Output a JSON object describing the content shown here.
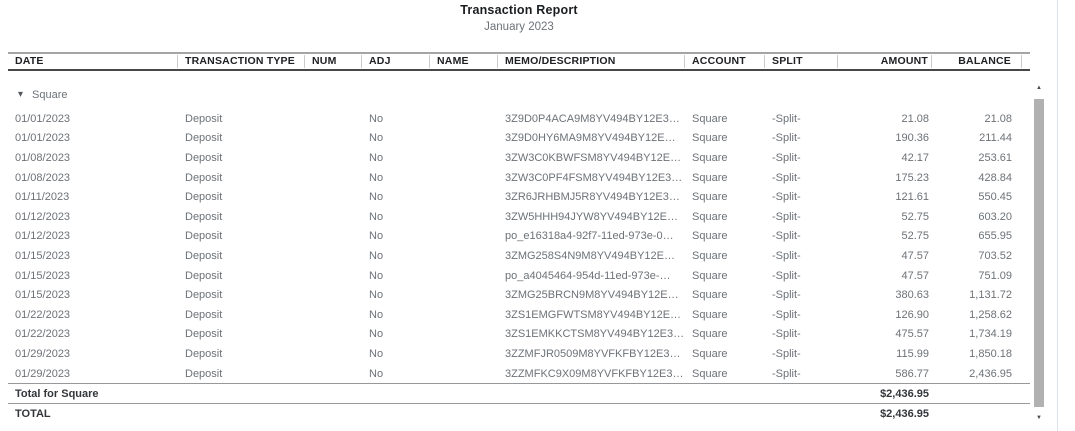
{
  "report": {
    "title": "Transaction Report",
    "subtitle": "January 2023"
  },
  "columns": [
    {
      "key": "date",
      "label": "DATE"
    },
    {
      "key": "type",
      "label": "TRANSACTION TYPE"
    },
    {
      "key": "num",
      "label": "NUM"
    },
    {
      "key": "adj",
      "label": "ADJ"
    },
    {
      "key": "name",
      "label": "NAME"
    },
    {
      "key": "memo",
      "label": "MEMO/DESCRIPTION"
    },
    {
      "key": "account",
      "label": "ACCOUNT"
    },
    {
      "key": "split",
      "label": "SPLIT"
    },
    {
      "key": "amount",
      "label": "AMOUNT"
    },
    {
      "key": "balance",
      "label": "BALANCE"
    }
  ],
  "group": {
    "label": "Square",
    "rows": [
      {
        "date": "01/01/2023",
        "type": "Deposit",
        "num": "",
        "adj": "No",
        "name": "",
        "memo": "3Z9D0P4ACA9M8YV494BY12E3…",
        "account": "Square",
        "split": "-Split-",
        "amount": "21.08",
        "balance": "21.08"
      },
      {
        "date": "01/01/2023",
        "type": "Deposit",
        "num": "",
        "adj": "No",
        "name": "",
        "memo": "3Z9D0HY6MA9M8YV494BY12E…",
        "account": "Square",
        "split": "-Split-",
        "amount": "190.36",
        "balance": "211.44"
      },
      {
        "date": "01/08/2023",
        "type": "Deposit",
        "num": "",
        "adj": "No",
        "name": "",
        "memo": "3ZW3C0KBWFSM8YV494BY12E…",
        "account": "Square",
        "split": "-Split-",
        "amount": "42.17",
        "balance": "253.61"
      },
      {
        "date": "01/08/2023",
        "type": "Deposit",
        "num": "",
        "adj": "No",
        "name": "",
        "memo": "3ZW3C0PF4FSM8YV494BY12E3…",
        "account": "Square",
        "split": "-Split-",
        "amount": "175.23",
        "balance": "428.84"
      },
      {
        "date": "01/11/2023",
        "type": "Deposit",
        "num": "",
        "adj": "No",
        "name": "",
        "memo": "3ZR6JRHBMJ5R8YV494BY12E3…",
        "account": "Square",
        "split": "-Split-",
        "amount": "121.61",
        "balance": "550.45"
      },
      {
        "date": "01/12/2023",
        "type": "Deposit",
        "num": "",
        "adj": "No",
        "name": "",
        "memo": "3ZW5HHH94JYW8YV494BY12E…",
        "account": "Square",
        "split": "-Split-",
        "amount": "52.75",
        "balance": "603.20"
      },
      {
        "date": "01/12/2023",
        "type": "Deposit",
        "num": "",
        "adj": "No",
        "name": "",
        "memo": "po_e16318a4-92f7-11ed-973e-0…",
        "account": "Square",
        "split": "-Split-",
        "amount": "52.75",
        "balance": "655.95"
      },
      {
        "date": "01/15/2023",
        "type": "Deposit",
        "num": "",
        "adj": "No",
        "name": "",
        "memo": "3ZMG258S4N9M8YV494BY12E…",
        "account": "Square",
        "split": "-Split-",
        "amount": "47.57",
        "balance": "703.52"
      },
      {
        "date": "01/15/2023",
        "type": "Deposit",
        "num": "",
        "adj": "No",
        "name": "",
        "memo": "po_a4045464-954d-11ed-973e-…",
        "account": "Square",
        "split": "-Split-",
        "amount": "47.57",
        "balance": "751.09"
      },
      {
        "date": "01/15/2023",
        "type": "Deposit",
        "num": "",
        "adj": "No",
        "name": "",
        "memo": "3ZMG25BRCN9M8YV494BY12E…",
        "account": "Square",
        "split": "-Split-",
        "amount": "380.63",
        "balance": "1,131.72"
      },
      {
        "date": "01/22/2023",
        "type": "Deposit",
        "num": "",
        "adj": "No",
        "name": "",
        "memo": "3ZS1EMGFWTSM8YV494BY12E…",
        "account": "Square",
        "split": "-Split-",
        "amount": "126.90",
        "balance": "1,258.62"
      },
      {
        "date": "01/22/2023",
        "type": "Deposit",
        "num": "",
        "adj": "No",
        "name": "",
        "memo": "3ZS1EMKKCTSM8YV494BY12E3…",
        "account": "Square",
        "split": "-Split-",
        "amount": "475.57",
        "balance": "1,734.19"
      },
      {
        "date": "01/29/2023",
        "type": "Deposit",
        "num": "",
        "adj": "No",
        "name": "",
        "memo": "3ZZMFJR0509M8YVFKFBY12E3…",
        "account": "Square",
        "split": "-Split-",
        "amount": "115.99",
        "balance": "1,850.18"
      },
      {
        "date": "01/29/2023",
        "type": "Deposit",
        "num": "",
        "adj": "No",
        "name": "",
        "memo": "3ZZMFKC9X09M8YVFKFBY12E3…",
        "account": "Square",
        "split": "-Split-",
        "amount": "586.77",
        "balance": "2,436.95"
      }
    ],
    "total": {
      "label": "Total for Square",
      "amount": "$2,436.95"
    }
  },
  "grand_total": {
    "label": "TOTAL",
    "amount": "$2,436.95"
  },
  "icons": {
    "collapse_caret": "▾",
    "scroll_up": "▲",
    "scroll_down": "▼"
  },
  "colors": {
    "text_muted": "#6d7277",
    "text_dark": "#202124",
    "scrollbar_thumb": "#b1b1b1",
    "pane_divider": "#dde2f1"
  }
}
